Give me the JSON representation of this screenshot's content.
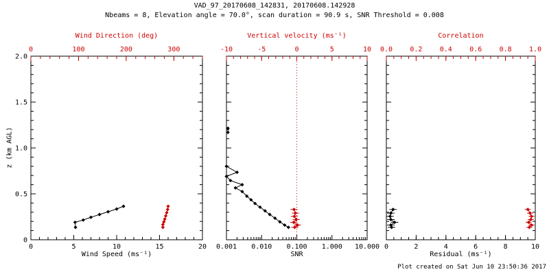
{
  "header": {
    "title": "VAD_97_20170608_142831, 20170608.142928",
    "subtitle": "Nbeams = 8, Elevation angle = 70.0°, scan duration = 90.9 s, SNR Threshold = 0.008"
  },
  "footer": {
    "created": "Plot created on Sat Jun 10 23:50:36 2017"
  },
  "colors": {
    "accent": "#cc0000",
    "foreground": "#000000",
    "background": "#ffffff"
  },
  "chart_data": [
    {
      "type": "line",
      "panel": "wind",
      "xlabel": "Wind Speed (ms⁻¹)",
      "top_label": "Wind Direction (deg)",
      "ylabel": "z (km AGL)",
      "x_scale": "linear",
      "xlim": [
        0,
        20
      ],
      "x_ticks": [
        0,
        5,
        10,
        15,
        20
      ],
      "x_tick_labels": [
        "0",
        "5",
        "10",
        "15",
        "20"
      ],
      "x_minor_step": 1,
      "top_xlim": [
        0,
        360
      ],
      "top_ticks": [
        0,
        100,
        200,
        300
      ],
      "top_tick_labels": [
        "0",
        "100",
        "200",
        "300"
      ],
      "top_minor_step": 20,
      "ylim": [
        0,
        2
      ],
      "y_ticks": [
        0,
        0.5,
        1,
        1.5,
        2
      ],
      "y_tick_labels": [
        "0",
        "0.5",
        "1.0",
        "1.5",
        "2.0"
      ],
      "y_minor_step": 0.1,
      "show_y_labels": true,
      "series": [
        {
          "name": "wind-speed",
          "color": "#000000",
          "axis": "bottom",
          "points": [
            [
              5.2,
              0.135
            ],
            [
              5.15,
              0.19
            ],
            [
              6.1,
              0.215
            ],
            [
              7.0,
              0.245
            ],
            [
              8.0,
              0.275
            ],
            [
              9.0,
              0.305
            ],
            [
              10.0,
              0.335
            ],
            [
              10.8,
              0.365
            ]
          ]
        },
        {
          "name": "wind-direction",
          "color": "#cc0000",
          "axis": "top",
          "points": [
            [
              277,
              0.135
            ],
            [
              277,
              0.165
            ],
            [
              279,
              0.195
            ],
            [
              281,
              0.225
            ],
            [
              283,
              0.26
            ],
            [
              285,
              0.295
            ],
            [
              287,
              0.33
            ],
            [
              288,
              0.365
            ]
          ]
        }
      ]
    },
    {
      "type": "line",
      "panel": "snr",
      "xlabel": "SNR",
      "top_label": "Vertical velocity (ms⁻¹)",
      "ylabel": "",
      "x_scale": "log",
      "xlim": [
        0.001,
        10
      ],
      "x_ticks": [
        0.001,
        0.01,
        0.1,
        1,
        10
      ],
      "x_tick_labels": [
        "0.001",
        "0.010",
        "0.100",
        "1.000",
        "10.000"
      ],
      "top_xlim": [
        -10,
        10
      ],
      "top_ticks": [
        -10,
        -5,
        0,
        5,
        10
      ],
      "top_tick_labels": [
        "-10",
        "-5",
        "0",
        "5",
        "10"
      ],
      "top_minor_step": 1,
      "ylim": [
        0,
        2
      ],
      "y_ticks": [
        0,
        0.5,
        1,
        1.5,
        2
      ],
      "y_tick_labels": [
        "0",
        "0.5",
        "1.0",
        "1.5",
        "2.0"
      ],
      "y_minor_step": 0.1,
      "show_y_labels": false,
      "vline_top": 0,
      "series": [
        {
          "name": "snr-upper",
          "color": "#000000",
          "axis": "bottom",
          "points": [
            [
              0.0011,
              1.215
            ],
            [
              0.0011,
              1.17
            ]
          ]
        },
        {
          "name": "snr-profile",
          "color": "#000000",
          "axis": "bottom",
          "points": [
            [
              0.001,
              0.8
            ],
            [
              0.002,
              0.735
            ],
            [
              0.001,
              0.69
            ],
            [
              0.0013,
              0.645
            ],
            [
              0.0028,
              0.6
            ],
            [
              0.0018,
              0.565
            ],
            [
              0.0028,
              0.525
            ],
            [
              0.0038,
              0.475
            ],
            [
              0.005,
              0.435
            ],
            [
              0.0065,
              0.395
            ],
            [
              0.009,
              0.355
            ],
            [
              0.0125,
              0.315
            ],
            [
              0.017,
              0.275
            ],
            [
              0.024,
              0.235
            ],
            [
              0.033,
              0.195
            ],
            [
              0.045,
              0.16
            ],
            [
              0.058,
              0.135
            ]
          ]
        },
        {
          "name": "vertical-velocity",
          "color": "#cc0000",
          "axis": "top",
          "xbar": 0.5,
          "points": [
            [
              -0.3,
              0.135
            ],
            [
              0.1,
              0.16
            ],
            [
              -0.45,
              0.19
            ],
            [
              -0.1,
              0.22
            ],
            [
              -0.35,
              0.255
            ],
            [
              -0.2,
              0.29
            ],
            [
              -0.4,
              0.33
            ]
          ]
        }
      ]
    },
    {
      "type": "line",
      "panel": "residual",
      "xlabel": "Residual (ms⁻¹)",
      "top_label": "Correlation",
      "ylabel": "",
      "x_scale": "linear",
      "xlim": [
        0,
        10
      ],
      "x_ticks": [
        0,
        2,
        4,
        6,
        8,
        10
      ],
      "x_tick_labels": [
        "0",
        "2",
        "4",
        "6",
        "8",
        "10"
      ],
      "x_minor_step": 0.5,
      "top_xlim": [
        0,
        1
      ],
      "top_ticks": [
        0,
        0.2,
        0.4,
        0.6,
        0.8,
        1
      ],
      "top_tick_labels": [
        "0.0",
        "0.2",
        "0.4",
        "0.6",
        "0.8",
        "1.0"
      ],
      "top_minor_step": 0.05,
      "ylim": [
        0,
        2
      ],
      "y_ticks": [
        0,
        0.5,
        1,
        1.5,
        2
      ],
      "y_tick_labels": [
        "0",
        "0.5",
        "1.0",
        "1.5",
        "2.0"
      ],
      "y_minor_step": 0.1,
      "show_y_labels": false,
      "series": [
        {
          "name": "residual",
          "color": "#000000",
          "axis": "bottom",
          "xbar": 0.25,
          "points": [
            [
              0.35,
              0.135
            ],
            [
              0.3,
              0.16
            ],
            [
              0.55,
              0.19
            ],
            [
              0.3,
              0.22
            ],
            [
              0.25,
              0.255
            ],
            [
              0.3,
              0.29
            ],
            [
              0.45,
              0.33
            ]
          ]
        },
        {
          "name": "correlation",
          "color": "#cc0000",
          "axis": "top",
          "xbar": 0.02,
          "points": [
            [
              0.96,
              0.135
            ],
            [
              0.975,
              0.16
            ],
            [
              0.955,
              0.19
            ],
            [
              0.97,
              0.22
            ],
            [
              0.975,
              0.255
            ],
            [
              0.965,
              0.29
            ],
            [
              0.95,
              0.33
            ]
          ]
        }
      ]
    }
  ]
}
